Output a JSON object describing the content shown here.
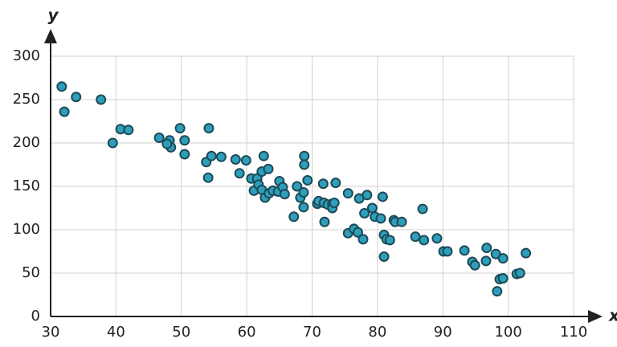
{
  "chart_data": {
    "type": "scatter",
    "x_label": "x",
    "y_label": "y",
    "x": [
      31.7,
      32.1,
      33.9,
      37.7,
      39.5,
      40.7,
      41.9,
      46.6,
      48.2,
      48.4,
      47.8,
      49.8,
      50.5,
      50.5,
      53.8,
      54.2,
      54.1,
      54.6,
      56.1,
      58.3,
      58.9,
      59.9,
      60.7,
      61.1,
      61.6,
      61.8,
      62.3,
      62.6,
      62.3,
      62.8,
      63.3,
      63.4,
      64.0,
      65.0,
      64.8,
      65.5,
      65.8,
      67.2,
      67.7,
      68.2,
      68.7,
      68.7,
      68.8,
      68.8,
      69.3,
      70.8,
      71.0,
      71.7,
      71.9,
      71.8,
      72.4,
      73.1,
      73.1,
      73.6,
      73.4,
      75.5,
      75.5,
      76.4,
      77.0,
      77.2,
      77.8,
      78.0,
      78.4,
      79.2,
      79.6,
      80.5,
      80.8,
      81.0,
      81.0,
      81.4,
      81.9,
      82.5,
      82.7,
      83.7,
      85.8,
      86.9,
      87.1,
      89.1,
      90.1,
      90.7,
      93.3,
      94.5,
      94.9,
      96.6,
      96.7,
      98.1,
      98.3,
      98.7,
      99.2,
      99.2,
      101.3,
      101.8,
      102.7
    ],
    "y": [
      265,
      236,
      253,
      250,
      200,
      216,
      215,
      206,
      203,
      195,
      199,
      217,
      203,
      187,
      178,
      217,
      160,
      185,
      184,
      181,
      165,
      180,
      159,
      145,
      159,
      152,
      167,
      185,
      146,
      137,
      170,
      142,
      145,
      156,
      144,
      149,
      141,
      115,
      150,
      137,
      126,
      143,
      185,
      175,
      157,
      130,
      133,
      153,
      109,
      131,
      129,
      130,
      125,
      154,
      131,
      142,
      96,
      101,
      97,
      136,
      89,
      119,
      140,
      125,
      115,
      113,
      138,
      69,
      94,
      89,
      88,
      111,
      109,
      109,
      92,
      124,
      88,
      90,
      75,
      75,
      76,
      63,
      59,
      64,
      79,
      72,
      29,
      43,
      44,
      67,
      49,
      50,
      73
    ],
    "color": "#2e9fba",
    "edge_color": "#1d4a57",
    "xlim": [
      30,
      110
    ],
    "ylim": [
      0,
      300
    ],
    "xticks": [
      30,
      40,
      50,
      60,
      70,
      80,
      90,
      100,
      110
    ],
    "yticks": [
      0,
      50,
      100,
      150,
      200,
      250,
      300
    ],
    "grid": true
  }
}
